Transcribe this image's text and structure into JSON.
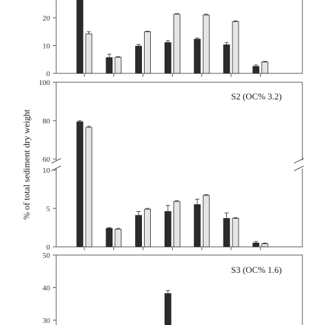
{
  "y_axis_title": "% of total sediment dry weight",
  "colors": {
    "dark": "#2b2b2b",
    "light": "#e5e5e5",
    "frame": "#555555"
  },
  "chart_data": [
    {
      "type": "bar",
      "panel_label": "",
      "categories": [
        "",
        "",
        "",
        "",
        "",
        "",
        ""
      ],
      "series": [
        {
          "values": [
            30,
            5.7,
            9.8,
            11.1,
            12.3,
            10.3,
            2.5
          ],
          "errors": [
            1.5,
            1.2,
            0.6,
            0.7,
            0.4,
            0.8,
            0.5
          ]
        },
        {
          "values": [
            14.2,
            5.8,
            15.0,
            21.3,
            21.0,
            18.6,
            4.1
          ],
          "errors": [
            0.8,
            0.2,
            0.2,
            0.2,
            0.3,
            0.3,
            0.2
          ]
        }
      ],
      "yticks": [
        0,
        10,
        20
      ],
      "ylim": [
        0,
        30
      ]
    },
    {
      "type": "bar",
      "panel_label": "S2 (OC% 3.2)",
      "categories": [
        "",
        "",
        "",
        "",
        "",
        "",
        ""
      ],
      "series": [
        {
          "values": [
            79.4,
            2.4,
            4.1,
            4.6,
            5.5,
            3.7,
            0.5
          ],
          "errors": [
            0.6,
            0.1,
            0.5,
            0.8,
            0.7,
            0.7,
            0.2
          ]
        },
        {
          "values": [
            76.5,
            2.3,
            4.9,
            5.9,
            6.7,
            3.7,
            0.4
          ],
          "errors": [
            0.6,
            0.1,
            0.1,
            0.1,
            0.1,
            0.1,
            0.1
          ]
        }
      ],
      "yticks_lower": [
        0,
        5,
        10
      ],
      "yticks_upper": [
        60,
        80,
        100
      ],
      "ylim_lower": [
        0,
        10
      ],
      "ylim_upper": [
        60,
        100
      ],
      "axis_break": true
    },
    {
      "type": "bar",
      "panel_label": "S3 (OC% 1.6)",
      "categories": [
        "",
        "",
        "",
        "",
        "",
        "",
        ""
      ],
      "series": [
        {
          "values": [
            null,
            null,
            null,
            38.2,
            null,
            null,
            null
          ],
          "errors": [
            null,
            null,
            null,
            0.9,
            null,
            null,
            null
          ]
        },
        {
          "values": [
            null,
            null,
            null,
            null,
            null,
            null,
            null
          ],
          "errors": [
            null,
            null,
            null,
            null,
            null,
            null,
            null
          ]
        }
      ],
      "yticks": [
        30,
        40,
        50
      ],
      "ylim": [
        27,
        50
      ]
    }
  ]
}
